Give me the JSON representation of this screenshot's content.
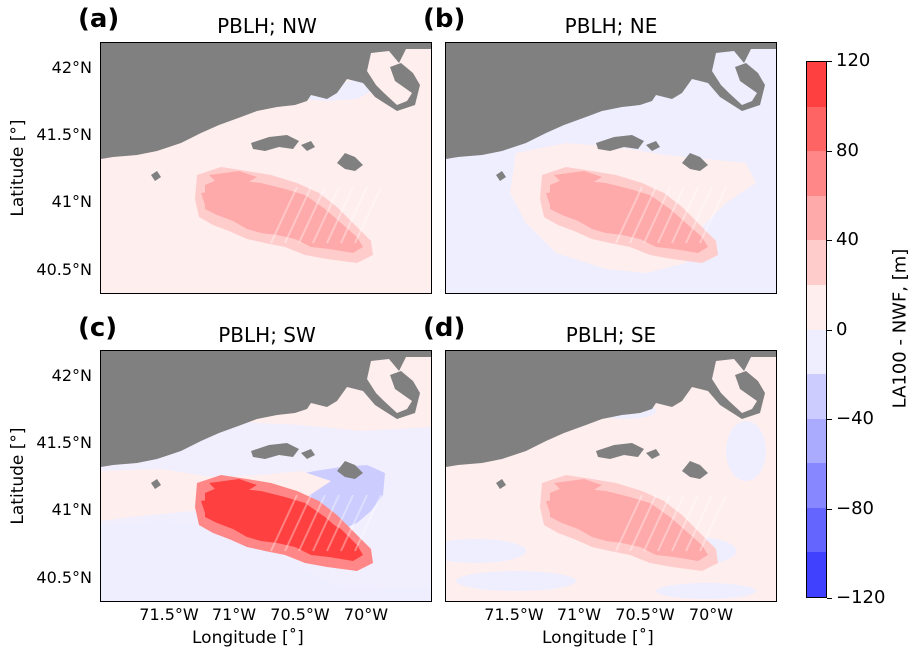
{
  "chart_data": [
    {
      "type": "heatmap",
      "panel": "(a)",
      "title": "PBLH; NW",
      "background_value": "0 to 20",
      "cluster_value": "20 to 60"
    },
    {
      "type": "heatmap",
      "panel": "(b)",
      "title": "PBLH; NE",
      "background_value": "-20 to 0",
      "cluster_value": "20 to 60"
    },
    {
      "type": "heatmap",
      "panel": "(c)",
      "title": "PBLH; SW",
      "background_value": "-20 to 20",
      "cluster_value": "60 to 120",
      "wake_value": "-40 to -20"
    },
    {
      "type": "heatmap",
      "panel": "(d)",
      "title": "PBLH; SE",
      "background_value": "-20 to 20",
      "cluster_value": "20 to 60"
    }
  ],
  "axes": {
    "ylabel": "Latitude [°]",
    "xlabel": "Longitude [$^{\\circ}$]",
    "xlabel_display": "Longitude [˚]",
    "yticks": [
      "42°N",
      "41.5°N",
      "41°N",
      "40.5°N"
    ],
    "xticks": [
      "71.5°W",
      "71°W",
      "70.5°W",
      "70°W"
    ]
  },
  "colorbar": {
    "label": "LA100 - NWF,  [m]",
    "ticks": [
      "120",
      "80",
      "40",
      "0",
      "−40",
      "−80",
      "−120"
    ],
    "levels": [
      120,
      100,
      80,
      60,
      40,
      20,
      0,
      -20,
      -40,
      -60,
      -80,
      -100,
      -120
    ],
    "colors": [
      "#ff4040",
      "#ff6464",
      "#ff8787",
      "#ffaaaa",
      "#ffcccc",
      "#ffeeee",
      "#eeeeff",
      "#ccccff",
      "#aaaaff",
      "#8787ff",
      "#6464ff",
      "#4040ff"
    ]
  },
  "colors": {
    "land": "#808080",
    "pos_light": "#ffeeee",
    "neg_light": "#eeeeff"
  }
}
